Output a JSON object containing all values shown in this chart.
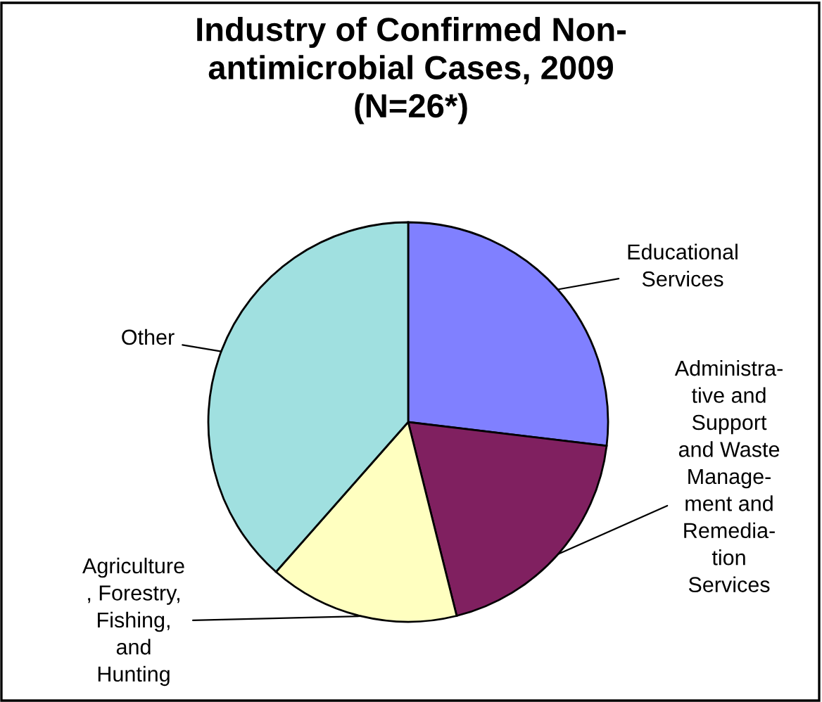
{
  "chart_data": {
    "type": "pie",
    "title": "Industry of Confirmed Non-\nantimicrobial Cases, 2009\n(N=26*)",
    "categories": [
      "Educational\nServices",
      "Administra-\ntive and\nSupport\nand Waste\nManage-\nment and\nRemedia-\ntion\nServices",
      "Agriculture\n, Forestry,\nFishing,\nand\nHunting",
      "Other"
    ],
    "values": [
      26.9,
      19.2,
      15.4,
      38.5
    ],
    "colors": [
      "#8080ff",
      "#802060",
      "#ffffc0",
      "#a0e0e0"
    ]
  }
}
